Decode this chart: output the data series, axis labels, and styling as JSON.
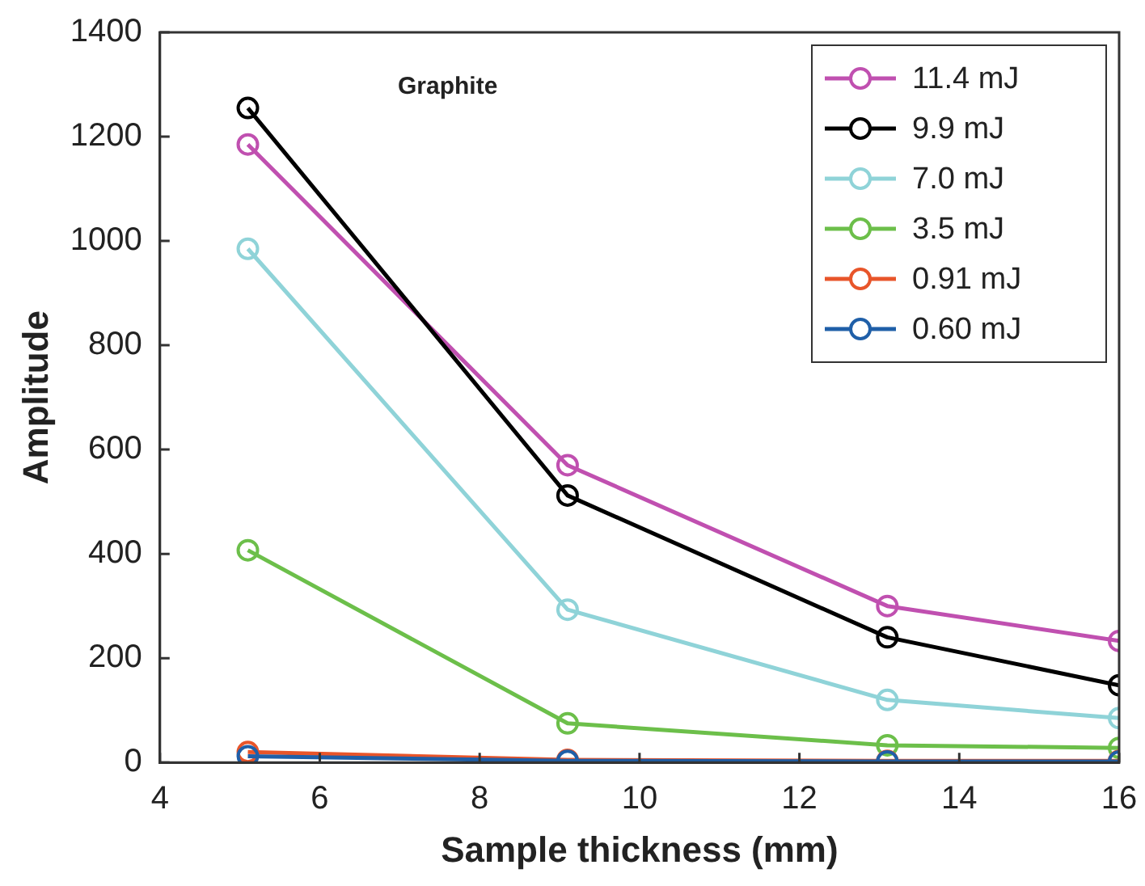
{
  "chart_data": {
    "type": "line",
    "xlabel": "Sample thickness (mm)",
    "ylabel": "Amplitude",
    "annotations": [
      "Graphite"
    ],
    "x": [
      5.1,
      9.1,
      13.1,
      16
    ],
    "xlim": [
      4,
      16
    ],
    "xticks": [
      4,
      6,
      8,
      10,
      12,
      14,
      16
    ],
    "ylim": [
      0,
      1400
    ],
    "yticks": [
      0,
      200,
      400,
      600,
      800,
      1000,
      1200,
      1400
    ],
    "grid": false,
    "legend": "top right",
    "marker": "circle",
    "line_style": "solid",
    "series": [
      {
        "name": "11.4 mJ",
        "color": "#c050b0",
        "values": [
          1185,
          570,
          300,
          233
        ]
      },
      {
        "name": "9.9 mJ",
        "color": "#000000",
        "values": [
          1255,
          512,
          240,
          148
        ]
      },
      {
        "name": "7.0 mJ",
        "color": "#8fd3d8",
        "values": [
          985,
          293,
          120,
          85
        ]
      },
      {
        "name": "3.5 mJ",
        "color": "#6cbf4a",
        "values": [
          407,
          75,
          33,
          28
        ]
      },
      {
        "name": "0.91 mJ",
        "color": "#e8552a",
        "values": [
          20,
          5,
          3,
          3
        ]
      },
      {
        "name": "0.60 mJ",
        "color": "#1f5fa8",
        "values": [
          12,
          3,
          2,
          2
        ]
      }
    ]
  }
}
